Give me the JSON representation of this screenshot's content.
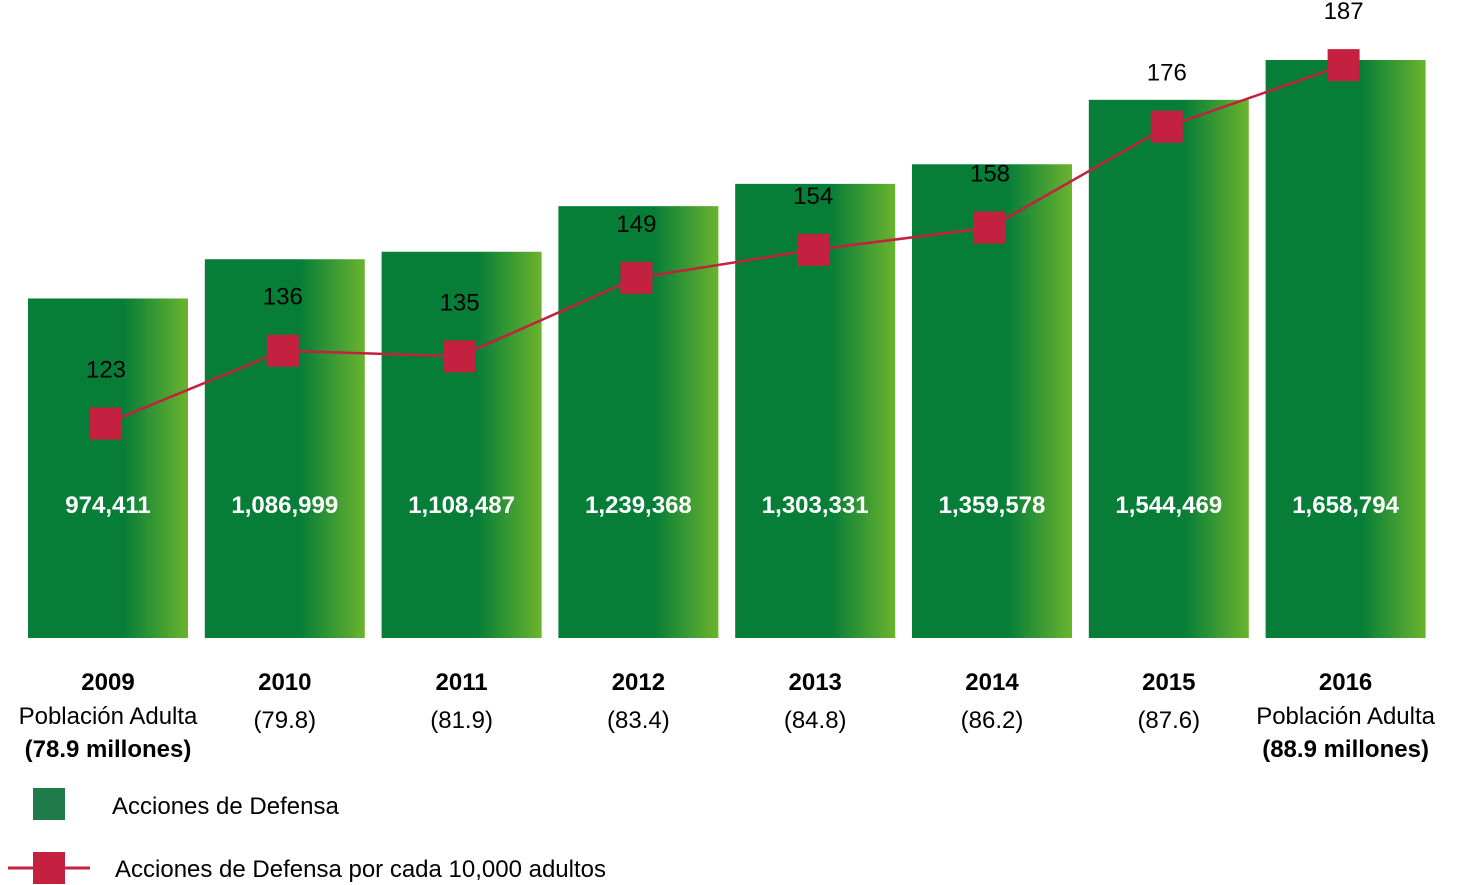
{
  "chart_data": {
    "type": "bar+line",
    "categories": [
      "2009",
      "2010",
      "2011",
      "2012",
      "2013",
      "2014",
      "2015",
      "2016"
    ],
    "category_labels": [
      "2009",
      "2010",
      "2011",
      "2012",
      "2013",
      "2014",
      "2015",
      "2016"
    ],
    "sub_labels": [
      [
        "Población Adulta",
        "(78.9 millones)"
      ],
      [
        "(79.8)"
      ],
      [
        "(81.9)"
      ],
      [
        "(83.4)"
      ],
      [
        "(84.8)"
      ],
      [
        "(86.2)"
      ],
      [
        "(87.6)"
      ],
      [
        "Población Adulta",
        "(88.9 millones)"
      ]
    ],
    "series": [
      {
        "name": "Acciones de Defensa",
        "kind": "bar",
        "values": [
          974411,
          1086999,
          1108487,
          1239368,
          1303331,
          1359578,
          1544469,
          1658794
        ],
        "value_labels": [
          "974,411",
          "1,086,999",
          "1,108,487",
          "1,239,368",
          "1,303,331",
          "1,359,578",
          "1,544,469",
          "1,658,794"
        ],
        "color": "#077E38",
        "gradient_to": "#6AB42D"
      },
      {
        "name": "Acciones de Defensa por cada 10,000 adultos",
        "kind": "line",
        "values": [
          123,
          136,
          135,
          149,
          154,
          158,
          176,
          187
        ],
        "value_labels": [
          "123",
          "136",
          "135",
          "149",
          "154",
          "158",
          "176",
          "187"
        ],
        "color": "#C4203F"
      }
    ],
    "legend": [
      {
        "label": "Acciones de Defensa",
        "color": "#1F7A4A"
      },
      {
        "label": "Acciones de Defensa por cada 10,000 adultos",
        "color": "#C4203F"
      }
    ],
    "legend_position": "bottom-left",
    "grid": false,
    "title": "",
    "xlabel": "",
    "ylabel": ""
  }
}
